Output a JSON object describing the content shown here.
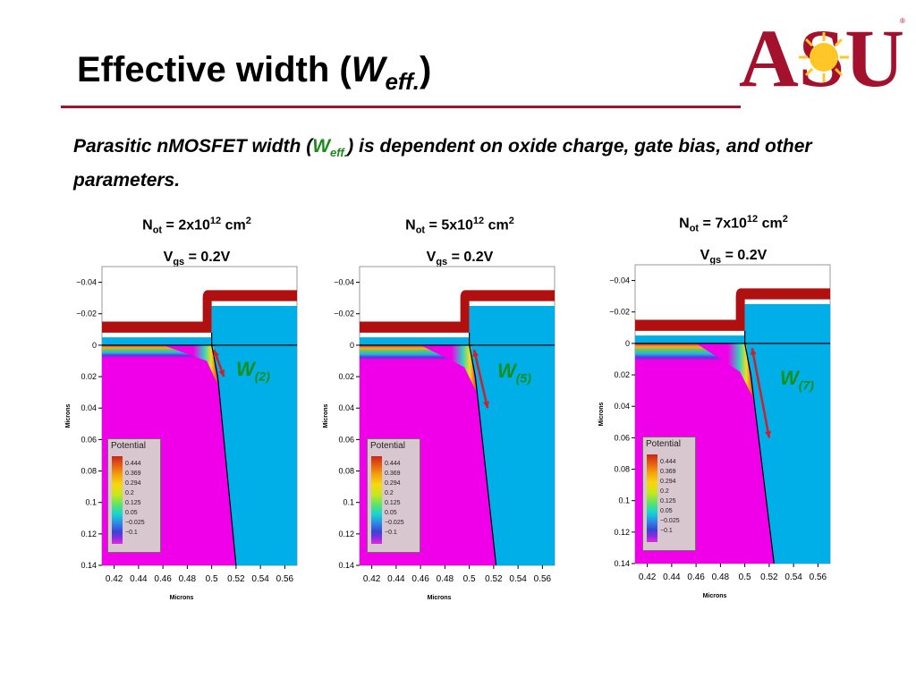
{
  "slide": {
    "title_main": "Effective width (",
    "title_w": "W",
    "title_sub": "eff.",
    "title_close": ")",
    "logo_text": "ASU",
    "subtitle_a": "Parasitic nMOSFET width (",
    "subtitle_w": "W",
    "subtitle_sub": "eff.",
    "subtitle_b": ") is dependent on oxide charge, gate bias, and other parameters."
  },
  "panels": [
    {
      "not_label": "N",
      "not_sub": "ot",
      "not_val": " = 2x10",
      "not_exp": "12",
      "not_unit": " cm",
      "not_unit_exp": "2",
      "vgs_label": "V",
      "vgs_sub": "gs",
      "vgs_val": " = 0.2V",
      "w_label": "W",
      "w_sub": "(2)"
    },
    {
      "not_label": "N",
      "not_sub": "ot",
      "not_val": " = 5x10",
      "not_exp": "12",
      "not_unit": " cm",
      "not_unit_exp": "2",
      "vgs_label": "V",
      "vgs_sub": "gs",
      "vgs_val": " = 0.2V",
      "w_label": "W",
      "w_sub": "(5)"
    },
    {
      "not_label": "N",
      "not_sub": "ot",
      "not_val": " = 7x10",
      "not_exp": "12",
      "not_unit": " cm",
      "not_unit_exp": "2",
      "vgs_label": "V",
      "vgs_sub": "gs",
      "vgs_val": " = 0.2V",
      "w_label": "W",
      "w_sub": "(7)"
    }
  ],
  "legend": {
    "title": "Potential",
    "values": [
      "0.444",
      "0.369",
      "0.294",
      "0.2",
      "0.125",
      "0.05",
      "−0.025",
      "−0.1"
    ]
  },
  "chart_data": [
    {
      "type": "heatmap",
      "title": "N_ot = 2x10^12 cm^2, V_gs = 0.2V",
      "xlabel": "Microns",
      "ylabel": "Microns",
      "xlim": [
        0.41,
        0.57
      ],
      "ylim": [
        -0.05,
        0.14
      ],
      "x_ticks": [
        "0.42",
        "0.44",
        "0.46",
        "0.48",
        "0.5",
        "0.52",
        "0.54",
        "0.56"
      ],
      "y_ticks": [
        "−0.04",
        "−0.02",
        "0",
        "0.02",
        "0.04",
        "0.06",
        "0.08",
        "0.1",
        "0.12",
        "0.14"
      ],
      "annotation": "W(2)"
    },
    {
      "type": "heatmap",
      "title": "N_ot = 5x10^12 cm^2, V_gs = 0.2V",
      "xlabel": "Microns",
      "ylabel": "Microns",
      "xlim": [
        0.41,
        0.57
      ],
      "ylim": [
        -0.05,
        0.14
      ],
      "x_ticks": [
        "0.42",
        "0.44",
        "0.46",
        "0.48",
        "0.5",
        "0.52",
        "0.54",
        "0.56"
      ],
      "y_ticks": [
        "−0.04",
        "−0.02",
        "0",
        "0.02",
        "0.04",
        "0.06",
        "0.08",
        "0.1",
        "0.12",
        "0.14"
      ],
      "annotation": "W(5)"
    },
    {
      "type": "heatmap",
      "title": "N_ot = 7x10^12 cm^2, V_gs = 0.2V",
      "xlabel": "Microns",
      "ylabel": "Microns",
      "xlim": [
        0.41,
        0.57
      ],
      "ylim": [
        -0.05,
        0.14
      ],
      "x_ticks": [
        "0.42",
        "0.44",
        "0.46",
        "0.48",
        "0.5",
        "0.52",
        "0.54",
        "0.56"
      ],
      "y_ticks": [
        "−0.04",
        "−0.02",
        "0",
        "0.02",
        "0.04",
        "0.06",
        "0.08",
        "0.1",
        "0.12",
        "0.14"
      ],
      "annotation": "W(7)"
    }
  ],
  "colors": {
    "accent": "#a3112c",
    "gate": "#b01010",
    "oxide": "#00aee8",
    "silicon": "#f000e8",
    "weff": "#17901a",
    "arrow": "#d0202a"
  }
}
